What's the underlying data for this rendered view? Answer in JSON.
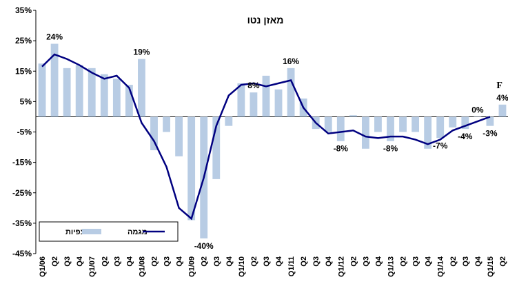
{
  "chart_data": {
    "type": "bar_line",
    "title": "מאזן נטו",
    "categories": [
      "Q1/06",
      "Q2",
      "Q3",
      "Q4",
      "Q1/07",
      "Q2",
      "Q3",
      "Q4",
      "Q1/08",
      "Q2",
      "Q3",
      "Q4",
      "Q1/09",
      "Q2",
      "Q3",
      "Q4",
      "Q1/10",
      "Q2",
      "Q3",
      "Q4",
      "Q1/11",
      "Q2",
      "Q3",
      "Q4",
      "Q1/12",
      "Q2",
      "Q3",
      "Q4",
      "Q1/13",
      "Q2",
      "Q3",
      "Q4",
      "Q1/14",
      "Q2",
      "Q3",
      "Q4",
      "Q1/15",
      "Q2"
    ],
    "series": [
      {
        "name": "תצפיות",
        "type": "bar",
        "color": "#b8cce4",
        "values": [
          17.5,
          24,
          16,
          17,
          16,
          14,
          12.5,
          10.5,
          19,
          -11,
          -5,
          -13,
          -34,
          -40,
          -20.5,
          -3,
          11,
          8,
          13.5,
          9,
          16,
          6,
          -4,
          -5,
          -8,
          0.5,
          -10.5,
          -5,
          -8,
          -5,
          -5,
          -10.5,
          -7,
          -3.5,
          -4,
          0,
          -3,
          4
        ],
        "value_labels": [
          null,
          "24%",
          null,
          null,
          null,
          null,
          null,
          null,
          "19%",
          null,
          null,
          null,
          null,
          "-40%",
          null,
          null,
          null,
          "8%",
          null,
          null,
          "16%",
          null,
          null,
          null,
          "-8%",
          null,
          null,
          null,
          "-8%",
          null,
          null,
          null,
          "-7%",
          null,
          "-4%",
          "0%",
          "-3%",
          "4%"
        ]
      },
      {
        "name": "מגמה",
        "type": "line",
        "color": "#000080",
        "values": [
          16.5,
          20.5,
          19,
          17,
          14.5,
          12.5,
          13.5,
          9.5,
          -2,
          -8,
          -16.5,
          -30,
          -33.5,
          -20,
          -3,
          7,
          10.5,
          11,
          10,
          11,
          12,
          3,
          -2,
          -5.5,
          -5,
          -4.5,
          -6.5,
          -7,
          -6.5,
          -6.5,
          -7.5,
          -9,
          -7.5,
          -4.5,
          -3,
          -1.5,
          0,
          null
        ]
      }
    ],
    "annotation": "F",
    "ylim": [
      -45,
      35
    ],
    "yticks": [
      {
        "value": -45,
        "label": "-45%"
      },
      {
        "value": -35,
        "label": "-35%"
      },
      {
        "value": -25,
        "label": "-25%"
      },
      {
        "value": -15,
        "label": "-15%"
      },
      {
        "value": -5,
        "label": "-5%"
      },
      {
        "value": 5,
        "label": "5%"
      },
      {
        "value": 15,
        "label": "15%"
      },
      {
        "value": 25,
        "label": "25%"
      },
      {
        "value": 35,
        "label": "35%"
      }
    ],
    "legend": "lower left"
  }
}
